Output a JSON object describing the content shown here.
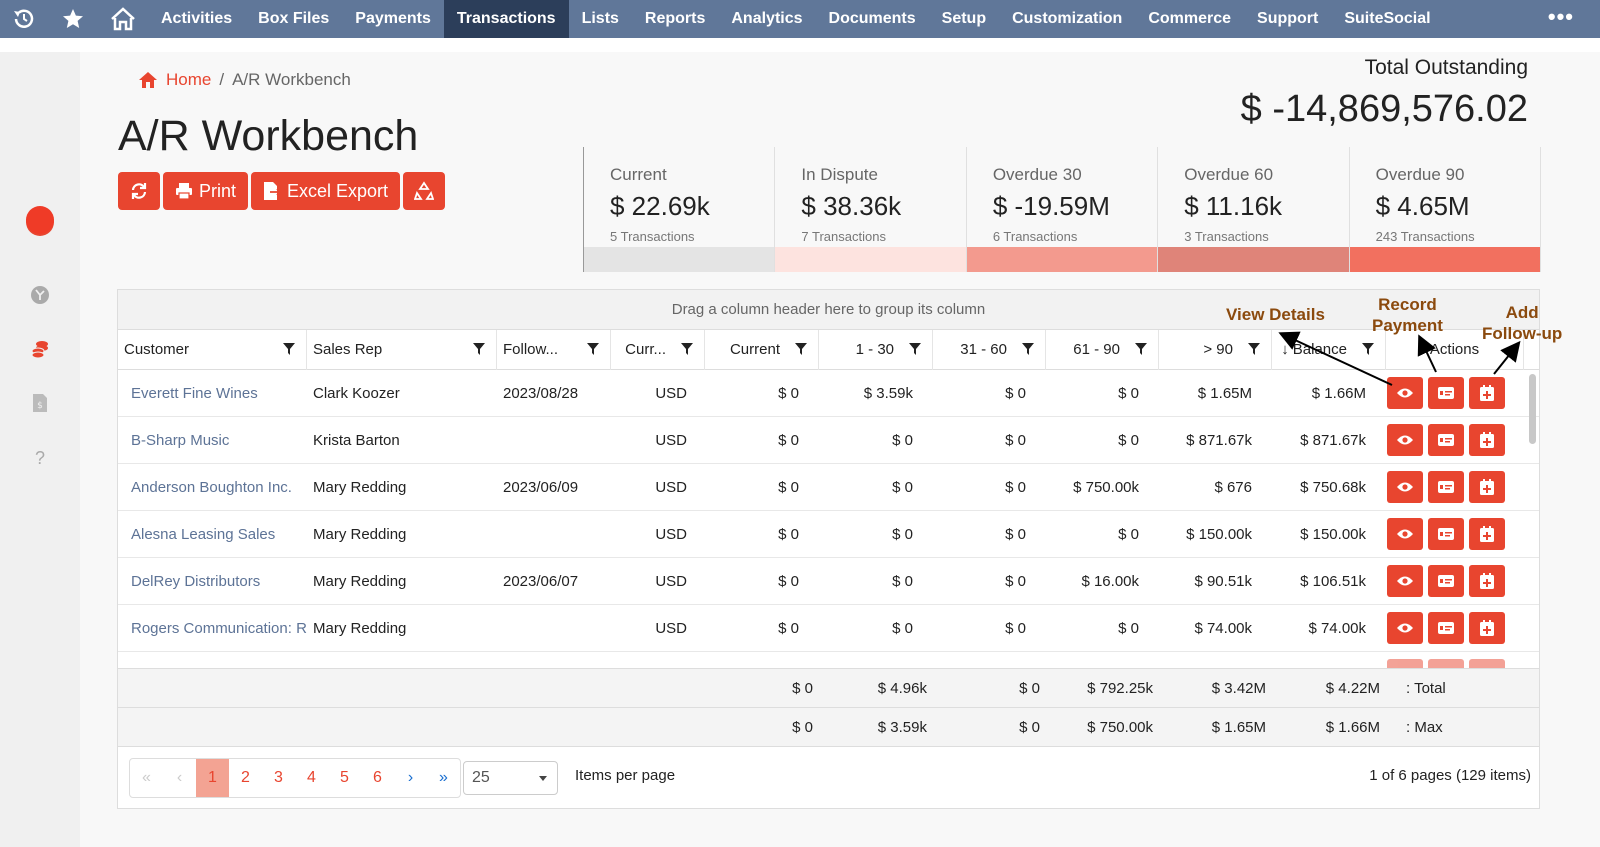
{
  "nav": {
    "items": [
      "Activities",
      "Box Files",
      "Payments",
      "Transactions",
      "Lists",
      "Reports",
      "Analytics",
      "Documents",
      "Setup",
      "Customization",
      "Commerce",
      "Support",
      "SuiteSocial"
    ],
    "active": "Transactions",
    "more": "•••"
  },
  "breadcrumb": {
    "home": "Home",
    "sep": "/",
    "current": "A/R Workbench"
  },
  "page_title": "A/R Workbench",
  "buttons": {
    "print": "Print",
    "export": "Excel Export"
  },
  "total": {
    "label": "Total Outstanding",
    "value": "$ -14,869,576.02"
  },
  "cards": [
    {
      "label": "Current",
      "value": "$ 22.69k",
      "count": "5 Transactions",
      "color": "#e4e4e4"
    },
    {
      "label": "In Dispute",
      "value": "$ 38.36k",
      "count": "7 Transactions",
      "color": "#fde3df"
    },
    {
      "label": "Overdue 30",
      "value": "$ -19.59M",
      "count": "6 Transactions",
      "color": "#f39a8e"
    },
    {
      "label": "Overdue 60",
      "value": "$ 11.16k",
      "count": "3 Transactions",
      "color": "#df8479"
    },
    {
      "label": "Overdue 90",
      "value": "$ 4.65M",
      "count": "243 Transactions",
      "color": "#f2705f"
    }
  ],
  "grid": {
    "group_hint": "Drag a column header here to group its column",
    "headers": [
      "Customer",
      "Sales Rep",
      "Follow...",
      "Curr...",
      "Current",
      "1 - 30",
      "31 - 60",
      "61 - 90",
      "> 90",
      "Balance",
      "Actions"
    ],
    "rows": [
      {
        "customer": "Everett Fine Wines",
        "rep": "Clark Koozer",
        "follow": "2023/08/28",
        "curr": "USD",
        "current": "$ 0",
        "d30": "$ 3.59k",
        "d60": "$ 0",
        "d90": "$ 0",
        "over90": "$ 1.65M",
        "balance": "$ 1.66M"
      },
      {
        "customer": "B-Sharp Music",
        "rep": "Krista Barton",
        "follow": "",
        "curr": "USD",
        "current": "$ 0",
        "d30": "$ 0",
        "d60": "$ 0",
        "d90": "$ 0",
        "over90": "$ 871.67k",
        "balance": "$ 871.67k"
      },
      {
        "customer": "Anderson Boughton Inc.",
        "rep": "Mary Redding",
        "follow": "2023/06/09",
        "curr": "USD",
        "current": "$ 0",
        "d30": "$ 0",
        "d60": "$ 0",
        "d90": "$ 750.00k",
        "over90": "$ 676",
        "balance": "$ 750.68k"
      },
      {
        "customer": "Alesna Leasing Sales",
        "rep": "Mary Redding",
        "follow": "",
        "curr": "USD",
        "current": "$ 0",
        "d30": "$ 0",
        "d60": "$ 0",
        "d90": "$ 0",
        "over90": "$ 150.00k",
        "balance": "$ 150.00k"
      },
      {
        "customer": "DelRey Distributors",
        "rep": "Mary Redding",
        "follow": "2023/06/07",
        "curr": "USD",
        "current": "$ 0",
        "d30": "$ 0",
        "d60": "$ 0",
        "d90": "$ 16.00k",
        "over90": "$ 90.51k",
        "balance": "$ 106.51k"
      },
      {
        "customer": "Rogers Communication: Re",
        "rep": "Mary Redding",
        "follow": "",
        "curr": "USD",
        "current": "$ 0",
        "d30": "$ 0",
        "d60": "$ 0",
        "d90": "$ 0",
        "over90": "$ 74.00k",
        "balance": "$ 74.00k"
      }
    ],
    "footer": [
      {
        "current": "$ 0",
        "d30": "$ 4.96k",
        "d60": "$ 0",
        "d90": "$ 792.25k",
        "over90": "$ 3.42M",
        "balance": "$ 4.22M",
        "label": ": Total"
      },
      {
        "current": "$ 0",
        "d30": "$ 3.59k",
        "d60": "$ 0",
        "d90": "$ 750.00k",
        "over90": "$ 1.65M",
        "balance": "$ 1.66M",
        "label": ": Max"
      }
    ]
  },
  "pager": {
    "pages": [
      "1",
      "2",
      "3",
      "4",
      "5",
      "6"
    ],
    "current": "1",
    "per_page": "25",
    "per_page_label": "Items per page",
    "info": "1 of 6 pages (129 items)"
  },
  "annotations": {
    "view": "View Details",
    "record": "Record\nPayment",
    "followup": "Add\nFollow-up"
  }
}
